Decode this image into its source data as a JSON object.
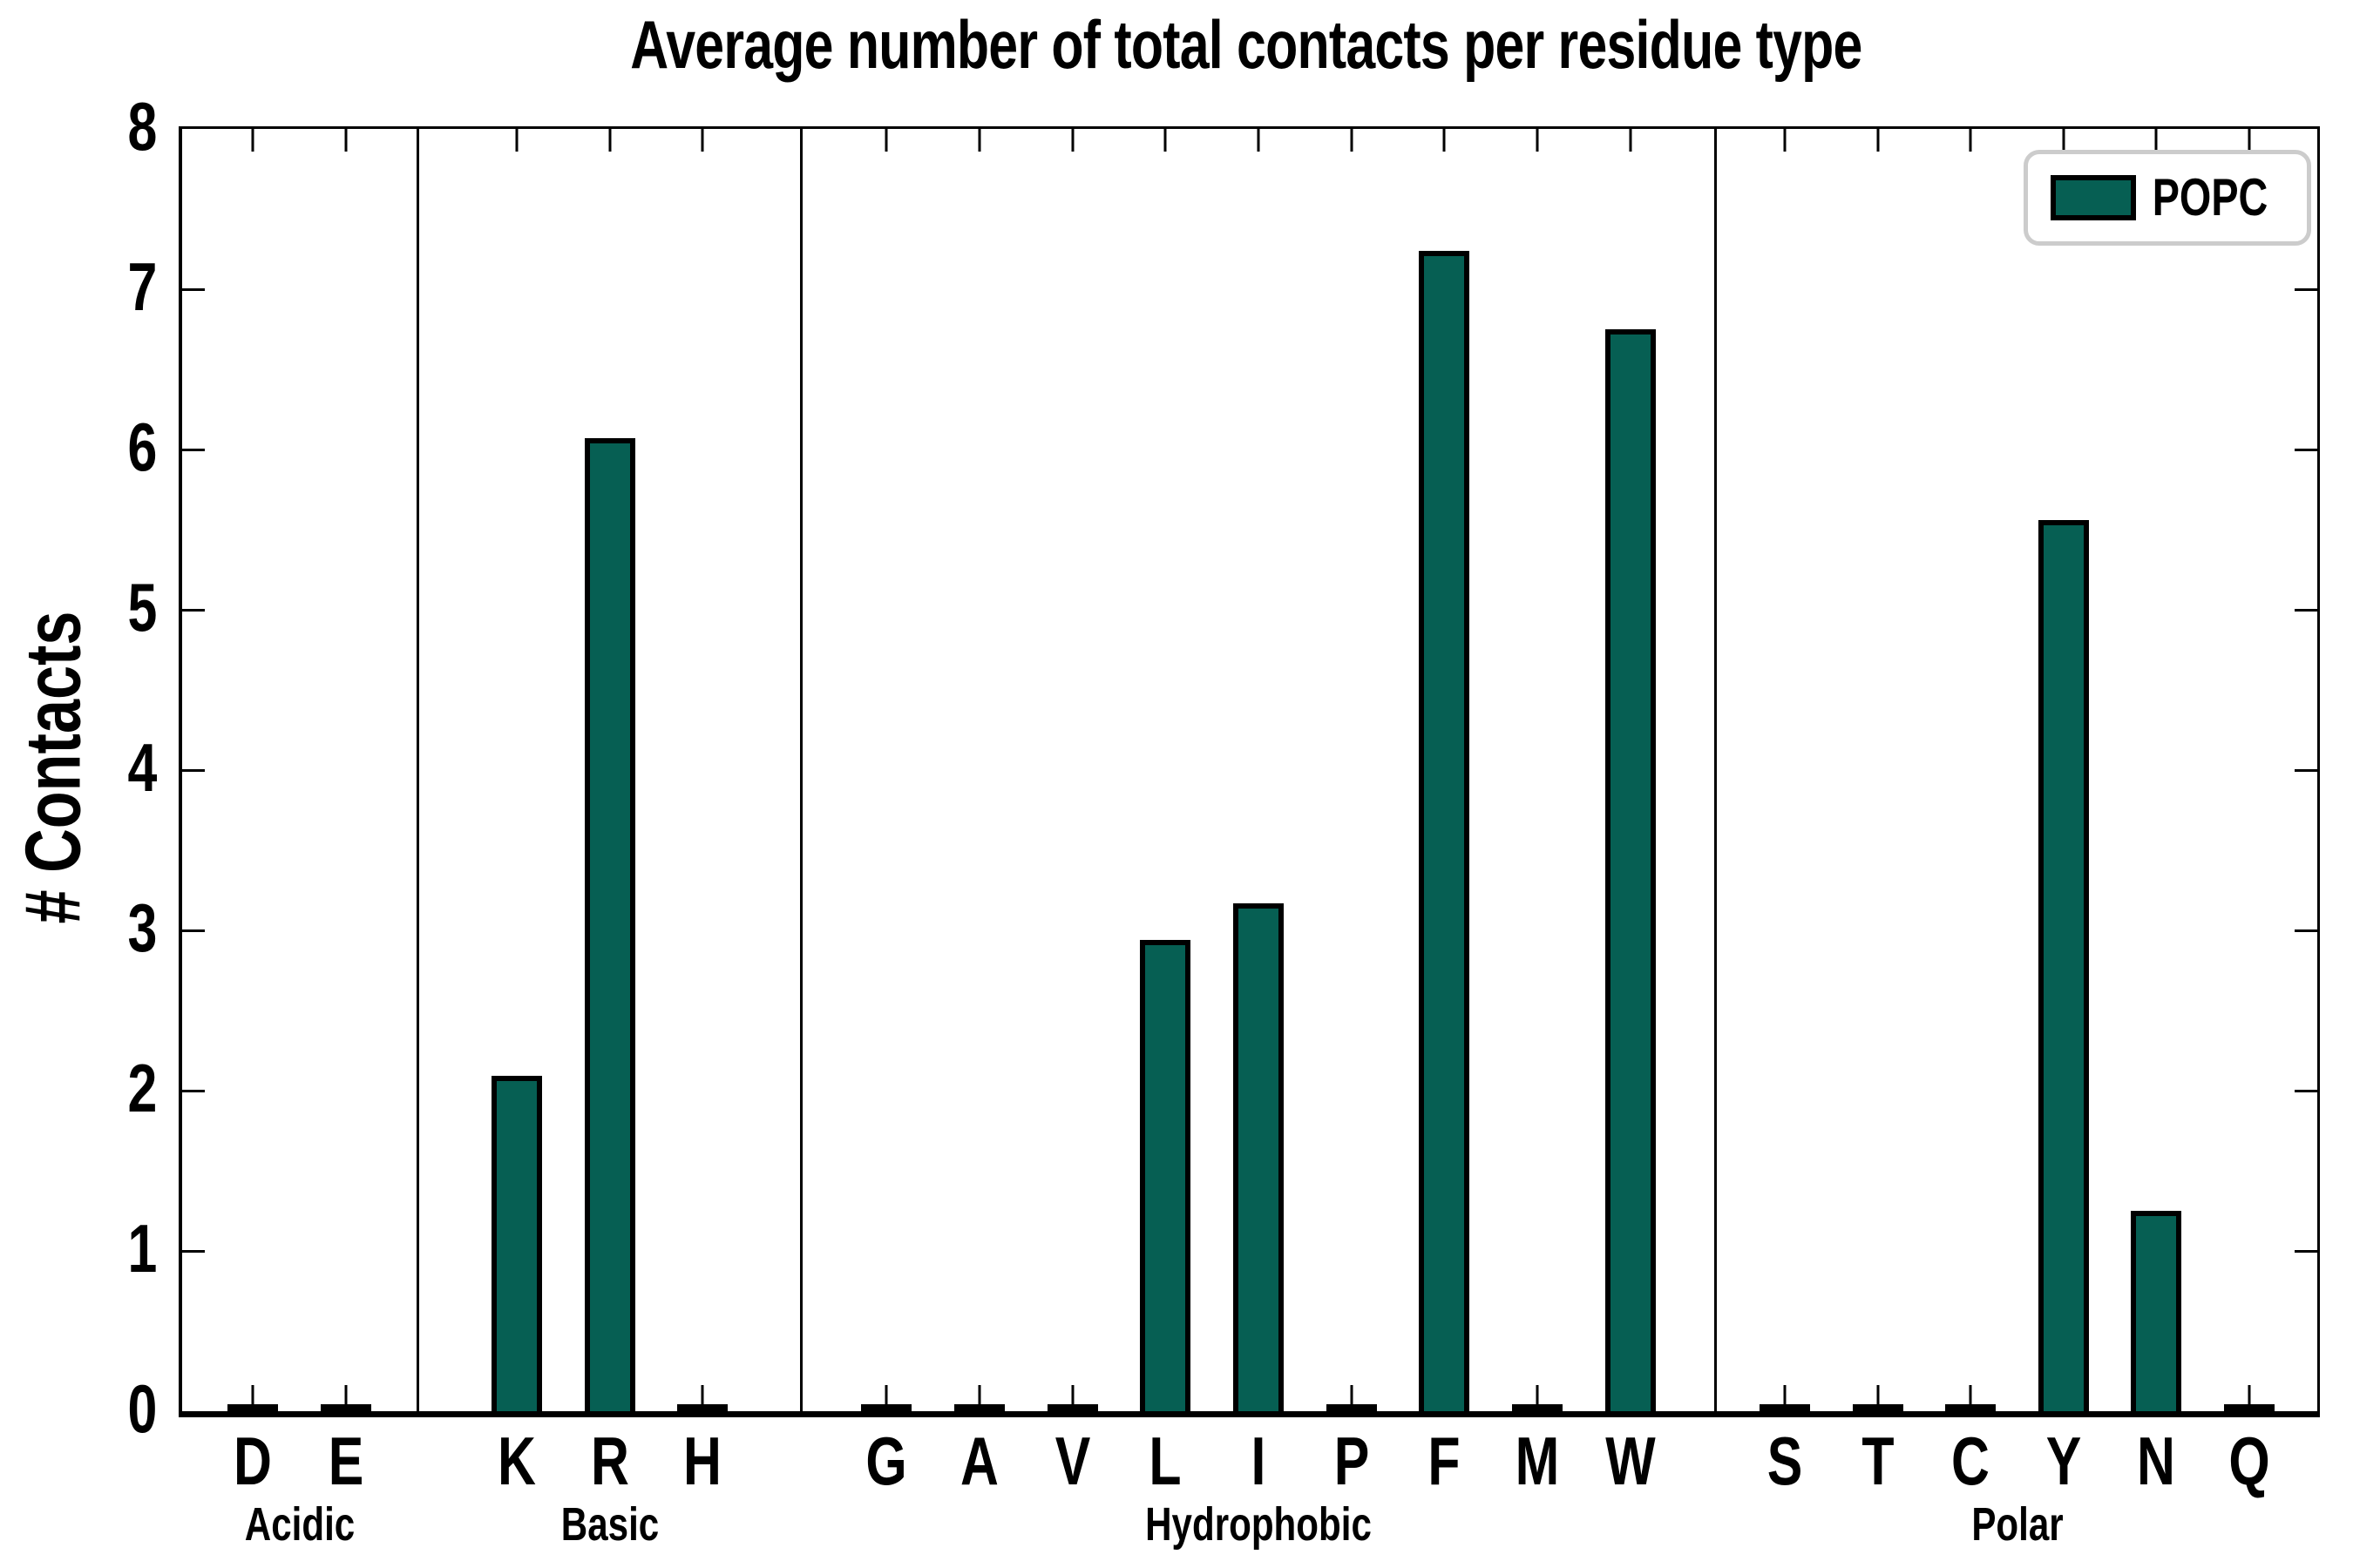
{
  "chart_data": {
    "type": "bar",
    "title": "Average number of total contacts per residue type",
    "ylabel": "# Contacts",
    "xlabel": "",
    "ylim": [
      0,
      8
    ],
    "yticks": [
      0,
      1,
      2,
      3,
      4,
      5,
      6,
      7,
      8
    ],
    "grid": false,
    "legend": {
      "position": "upper right",
      "entries": [
        "POPC"
      ]
    },
    "series_name": "POPC",
    "groups": [
      {
        "label": "Acidic",
        "categories": [
          "D",
          "E"
        ],
        "values": [
          0,
          0
        ]
      },
      {
        "label": "Basic",
        "categories": [
          "K",
          "R",
          "H"
        ],
        "values": [
          2.09,
          6.07,
          0
        ]
      },
      {
        "label": "Hydrophobic",
        "categories": [
          "G",
          "A",
          "V",
          "L",
          "I",
          "P",
          "F",
          "M",
          "W"
        ],
        "values": [
          0,
          0,
          0,
          2.94,
          3.17,
          0,
          7.24,
          0,
          6.75
        ]
      },
      {
        "label": "Polar",
        "categories": [
          "S",
          "T",
          "C",
          "Y",
          "N",
          "Q"
        ],
        "values": [
          0,
          0,
          0,
          5.56,
          1.25,
          0
        ]
      }
    ],
    "colors": {
      "bar_fill": "#065f53",
      "bar_edge": "#000000",
      "axis": "#000000",
      "legend_border": "#cccccc",
      "background": "#ffffff"
    }
  }
}
